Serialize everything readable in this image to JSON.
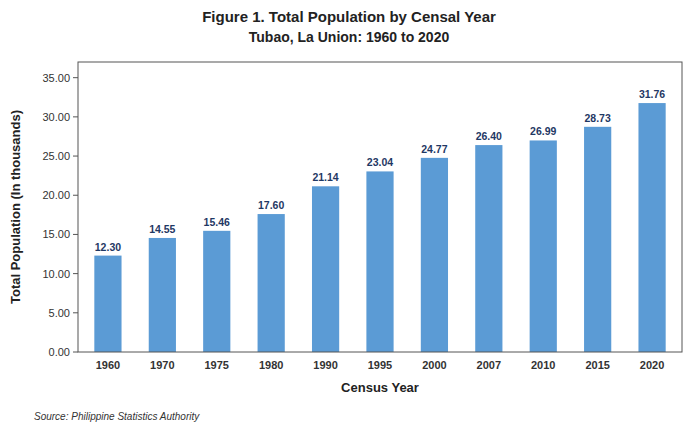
{
  "chart_data": {
    "type": "bar",
    "title": "Figure 1. Total Population by Censal Year",
    "subtitle": "Tubao, La Union: 1960 to 2020",
    "x_label": "Census Year",
    "y_label": "Total Population (In thousands)",
    "source": "Source: Philippine Statistics Authority",
    "categories": [
      "1960",
      "1970",
      "1975",
      "1980",
      "1990",
      "1995",
      "2000",
      "2007",
      "2010",
      "2015",
      "2020"
    ],
    "values": [
      12.3,
      14.55,
      15.46,
      17.6,
      21.14,
      23.04,
      24.77,
      26.4,
      26.99,
      28.73,
      31.76
    ],
    "value_labels": [
      "12.30",
      "14.55",
      "15.46",
      "17.60",
      "21.14",
      "23.04",
      "24.77",
      "26.40",
      "26.99",
      "28.73",
      "31.76"
    ],
    "data_labels": true,
    "color": "#5B9BD5",
    "ylim": [
      0,
      37
    ],
    "yticks": [
      {
        "value": 0,
        "label": "0.00"
      },
      {
        "value": 5,
        "label": "5.00"
      },
      {
        "value": 10,
        "label": "10.00"
      },
      {
        "value": 15,
        "label": "15.00"
      },
      {
        "value": 20,
        "label": "20.00"
      },
      {
        "value": 25,
        "label": "25.00"
      },
      {
        "value": 30,
        "label": "30.00"
      },
      {
        "value": 35,
        "label": "35.00"
      }
    ],
    "grid": false
  }
}
